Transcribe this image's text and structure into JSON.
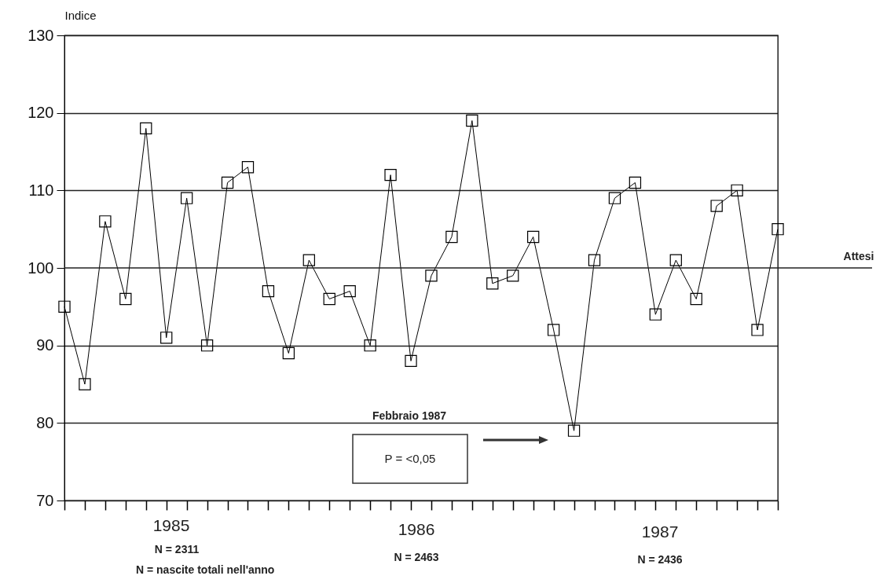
{
  "chart_data": {
    "type": "line",
    "ylabel": "Indice",
    "categories": [
      null,
      null,
      null,
      null,
      null,
      null,
      null,
      null,
      null,
      null,
      null,
      null,
      null,
      null,
      null,
      null,
      null,
      null,
      null,
      null,
      null,
      null,
      null,
      null,
      null,
      null,
      null,
      null,
      null,
      null,
      null,
      null,
      null,
      null,
      null,
      null
    ],
    "values": [
      95,
      85,
      106,
      96,
      118,
      91,
      109,
      90,
      111,
      113,
      97,
      89,
      101,
      96,
      97,
      90,
      112,
      88,
      99,
      104,
      119,
      98,
      99,
      104,
      92,
      79,
      101,
      109,
      111,
      94,
      101,
      96,
      108,
      110,
      92,
      105
    ],
    "color": "#000000",
    "marker": "square",
    "line_style": "solid",
    "ylim": [
      70,
      130
    ],
    "yticks": [
      70,
      80,
      90,
      100,
      110,
      120,
      130
    ],
    "grid": "y",
    "ref_lines": [
      {
        "axis": "y",
        "value": 100,
        "label": "Attesi"
      }
    ],
    "annotations": [
      "Febbraio 1987",
      "P = <0,05",
      "1985",
      "1986",
      "1987",
      "N = 2311",
      "N = 2463",
      "N = 2436",
      "N = nascite totali nell'anno"
    ]
  }
}
